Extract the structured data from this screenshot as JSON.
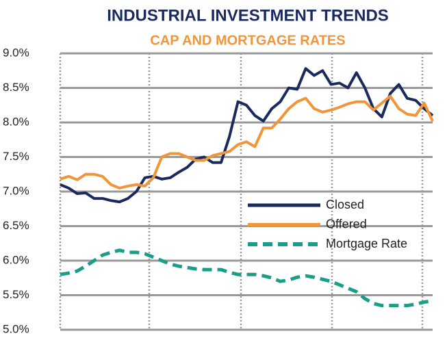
{
  "chart_data": {
    "type": "line",
    "title": "INDUSTRIAL INVESTMENT TRENDS",
    "subtitle": "CAP AND MORTGAGE RATES",
    "ylim": [
      5,
      9
    ],
    "yticks": [
      {
        "value": 5,
        "label": "5.0%"
      },
      {
        "value": 5.5,
        "label": "5.5%"
      },
      {
        "value": 6,
        "label": "6.0%"
      },
      {
        "value": 6.5,
        "label": "6.5%"
      },
      {
        "value": 7,
        "label": "7.0%"
      },
      {
        "value": 7.5,
        "label": "7.5%"
      },
      {
        "value": 8,
        "label": "8.0%"
      },
      {
        "value": 8.5,
        "label": "8.5%"
      },
      {
        "value": 9,
        "label": "9.0%"
      }
    ],
    "grid": true,
    "legend": "right",
    "series": [
      {
        "name": "Closed",
        "color": "#1b2a5e",
        "style": "solid",
        "values": [
          7.1,
          7.05,
          6.97,
          6.98,
          6.9,
          6.9,
          6.87,
          6.85,
          6.9,
          7.0,
          7.2,
          7.22,
          7.18,
          7.2,
          7.28,
          7.35,
          7.47,
          7.5,
          7.42,
          7.42,
          7.8,
          8.3,
          8.25,
          8.1,
          8.02,
          8.2,
          8.3,
          8.5,
          8.48,
          8.78,
          8.68,
          8.75,
          8.55,
          8.57,
          8.5,
          8.72,
          8.5,
          8.2,
          8.08,
          8.42,
          8.55,
          8.35,
          8.32,
          8.2,
          8.1
        ]
      },
      {
        "name": "Offered",
        "color": "#f0953a",
        "style": "solid",
        "values": [
          7.18,
          7.22,
          7.17,
          7.25,
          7.25,
          7.22,
          7.1,
          7.05,
          7.08,
          7.1,
          7.08,
          7.2,
          7.5,
          7.55,
          7.55,
          7.5,
          7.45,
          7.45,
          7.52,
          7.55,
          7.58,
          7.68,
          7.72,
          7.65,
          7.92,
          7.92,
          8.05,
          8.2,
          8.3,
          8.35,
          8.2,
          8.15,
          8.18,
          8.22,
          8.27,
          8.3,
          8.3,
          8.18,
          8.28,
          8.38,
          8.2,
          8.12,
          8.1,
          8.28,
          8.02
        ]
      },
      {
        "name": "Mortgage Rate",
        "color": "#1a9e8a",
        "style": "dashed",
        "values": [
          5.8,
          5.82,
          5.85,
          5.92,
          6.0,
          6.08,
          6.12,
          6.15,
          6.12,
          6.12,
          6.1,
          6.05,
          6.0,
          5.95,
          5.92,
          5.9,
          5.88,
          5.87,
          5.87,
          5.87,
          5.83,
          5.8,
          5.8,
          5.8,
          5.78,
          5.75,
          5.7,
          5.72,
          5.76,
          5.78,
          5.76,
          5.73,
          5.7,
          5.65,
          5.6,
          5.55,
          5.45,
          5.38,
          5.35,
          5.35,
          5.35,
          5.35,
          5.37,
          5.4,
          5.42
        ]
      }
    ]
  }
}
